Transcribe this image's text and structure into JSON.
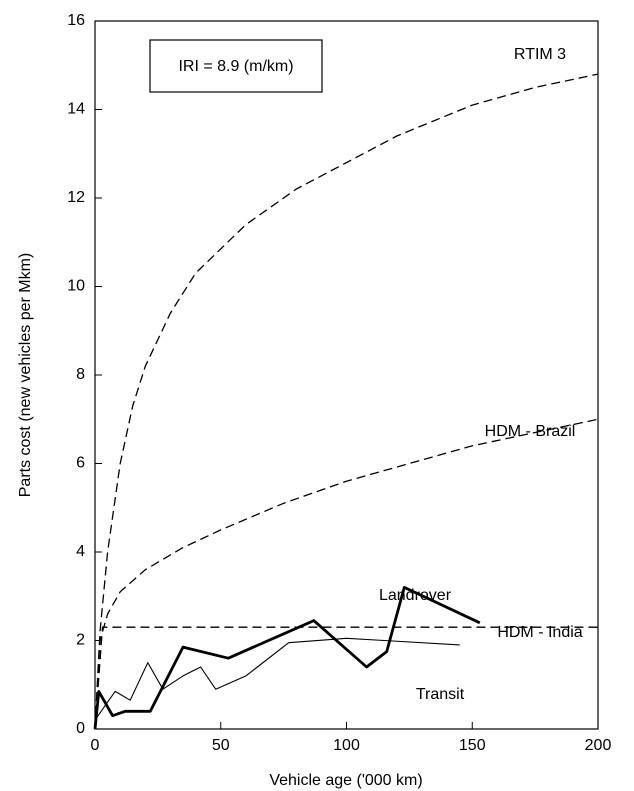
{
  "chart_data": {
    "type": "line",
    "annotation": "IRI = 8.9 (m/km)",
    "xlabel": "Vehicle age ('000 km)",
    "ylabel": "Parts cost (new vehicles per Mkm)",
    "xlim": [
      0,
      200
    ],
    "xticks": [
      0,
      50,
      100,
      150,
      200
    ],
    "ylim": [
      0,
      16
    ],
    "yticks": [
      0,
      2,
      4,
      6,
      8,
      10,
      12,
      14,
      16
    ],
    "series": [
      {
        "name": "RTIM 3",
        "color": "#000000",
        "style": "dashed",
        "x": [
          0,
          2,
          5,
          10,
          15,
          20,
          30,
          40,
          60,
          80,
          100,
          120,
          150,
          175,
          200
        ],
        "values": [
          0,
          2.2,
          4,
          6,
          7.3,
          8.2,
          9.4,
          10.3,
          11.4,
          12.2,
          12.8,
          13.4,
          14.1,
          14.5,
          14.8
        ]
      },
      {
        "name": "HDM - Brazil",
        "color": "#000000",
        "style": "dashed",
        "x": [
          0,
          2,
          5,
          10,
          20,
          35,
          50,
          75,
          100,
          125,
          150,
          175,
          200
        ],
        "values": [
          0,
          2,
          2.6,
          3.1,
          3.6,
          4.1,
          4.5,
          5.1,
          5.6,
          6.0,
          6.4,
          6.7,
          7.0
        ]
      },
      {
        "name": "Landrover",
        "color": "#000000",
        "style": "thick",
        "x": [
          0,
          1.5,
          7,
          12,
          22,
          35,
          53,
          87,
          108,
          116,
          123,
          153
        ],
        "values": [
          0,
          0.85,
          0.3,
          0.4,
          0.4,
          1.85,
          1.6,
          2.45,
          1.4,
          1.75,
          3.2,
          2.4
        ]
      },
      {
        "name": "HDM - India",
        "color": "#000000",
        "style": "dashed",
        "x": [
          0,
          3,
          200
        ],
        "values": [
          0,
          2.3,
          2.3
        ]
      },
      {
        "name": "Transit",
        "color": "#000000",
        "style": "thin",
        "x": [
          0,
          8,
          14,
          21,
          27,
          35,
          42,
          48,
          60,
          77,
          100,
          115,
          145
        ],
        "values": [
          0.2,
          0.85,
          0.65,
          1.5,
          0.9,
          1.2,
          1.4,
          0.9,
          1.2,
          1.95,
          2.05,
          2.0,
          1.9
        ]
      }
    ]
  }
}
